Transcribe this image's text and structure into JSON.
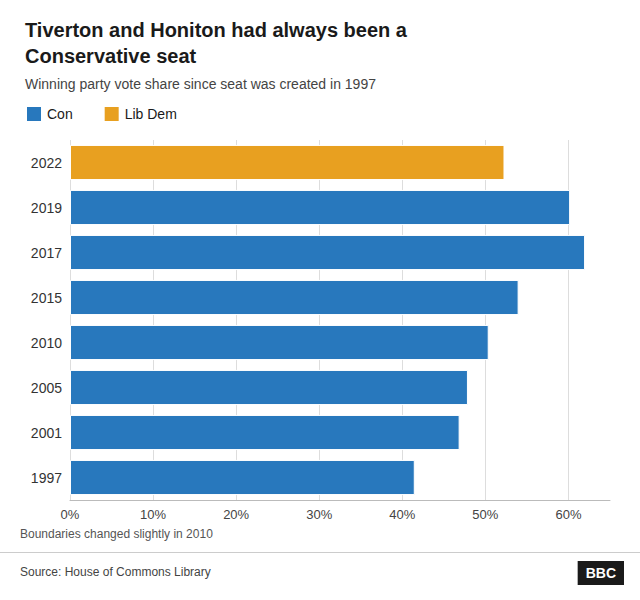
{
  "chart_data": {
    "type": "bar",
    "orientation": "horizontal",
    "title": "Tiverton and Honiton had always been a\nConservative seat",
    "subtitle": "Winning party vote share since seat was created in 1997",
    "categories": [
      "2022",
      "2019",
      "2017",
      "2015",
      "2010",
      "2005",
      "2001",
      "1997"
    ],
    "series": [
      {
        "name": "Con",
        "color": "#2878BD",
        "values": [
          null,
          60.2,
          62.0,
          54.0,
          50.4,
          47.9,
          46.9,
          41.5
        ]
      },
      {
        "name": "Lib Dem",
        "color": "#E8A020",
        "values": [
          52.3,
          null,
          null,
          null,
          null,
          null,
          null,
          null
        ]
      }
    ],
    "xlim": [
      0,
      65
    ],
    "xticks": [
      {
        "value": 0,
        "label": "0%"
      },
      {
        "value": 10,
        "label": "10%"
      },
      {
        "value": 20,
        "label": "20%"
      },
      {
        "value": 30,
        "label": "30%"
      },
      {
        "value": 40,
        "label": "40%"
      },
      {
        "value": 50,
        "label": "50%"
      },
      {
        "value": 60,
        "label": "60%"
      }
    ],
    "grid": true,
    "legend": "top left",
    "annotations": [
      "Boundaries changed slightly in 2010",
      "Source: House of Commons Library",
      "BBC"
    ]
  }
}
